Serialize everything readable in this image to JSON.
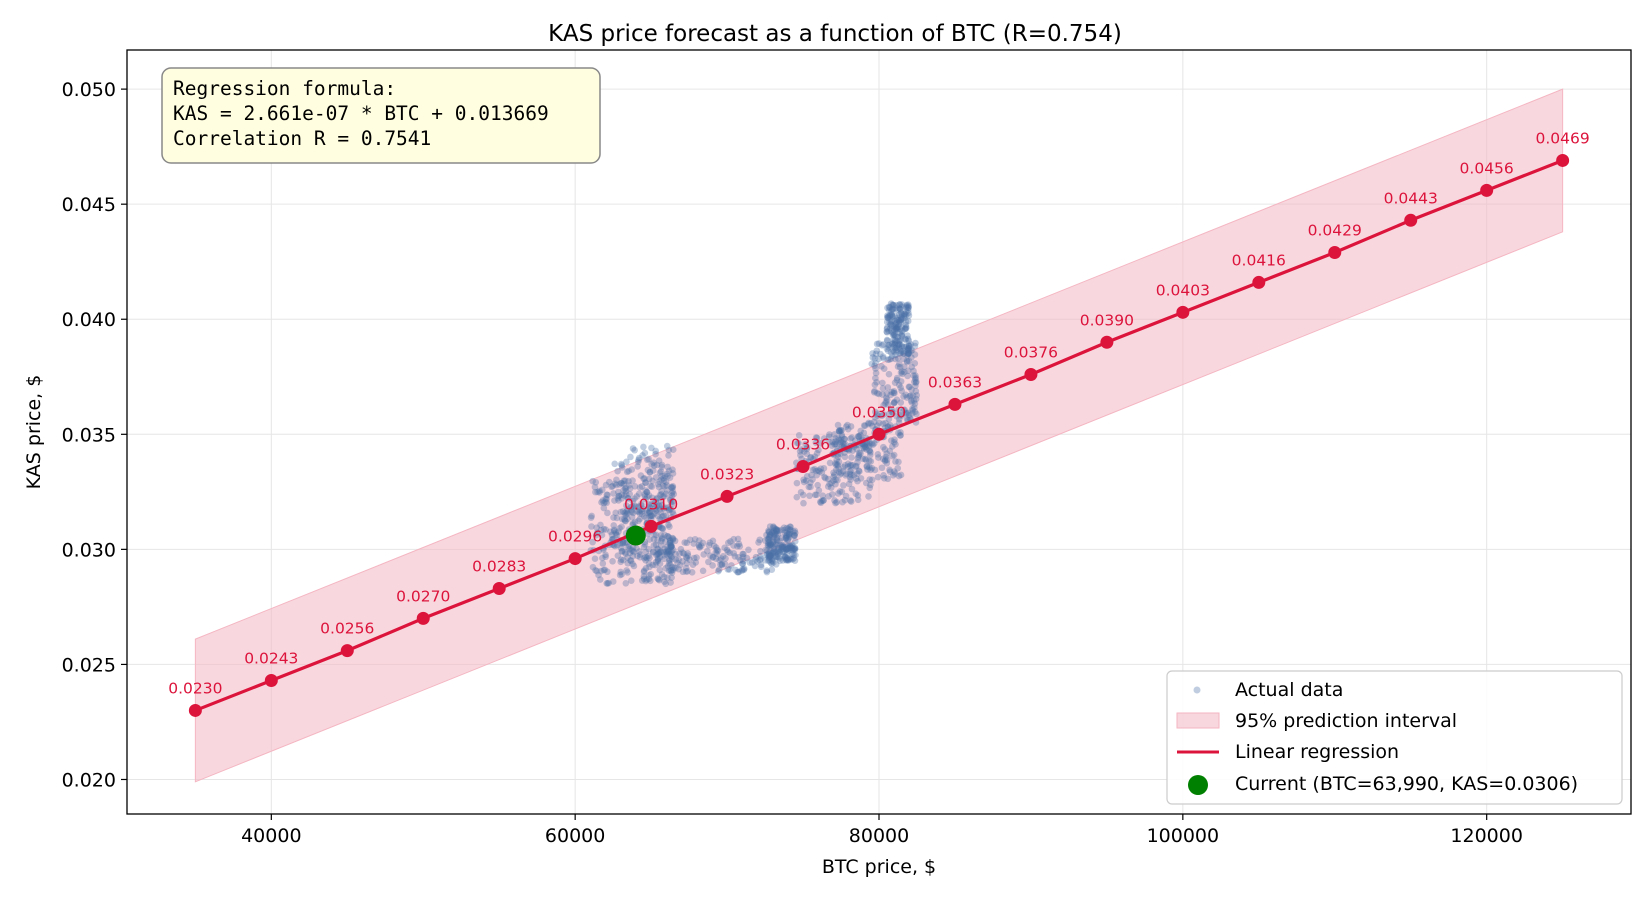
{
  "chart_data": {
    "type": "scatter",
    "title": "KAS price forecast as a function of BTC   (R=0.754)",
    "xlabel": "BTC price, $",
    "ylabel": "KAS price, $",
    "xlim": [
      30500,
      129500
    ],
    "ylim": [
      0.0185,
      0.0517
    ],
    "xticks": [
      "40000",
      "60000",
      "80000",
      "100000",
      "120000"
    ],
    "yticks": [
      "0.020",
      "0.025",
      "0.030",
      "0.035",
      "0.040",
      "0.045",
      "0.050"
    ],
    "grid": true,
    "annotation": {
      "lines": [
        "Regression formula:",
        "KAS = 2.661e-07 * BTC + 0.013669",
        "Correlation R = 0.7541"
      ]
    },
    "regression": {
      "name": "Linear regression",
      "color": "#dc143c",
      "x": [
        35000,
        40000,
        45000,
        50000,
        55000,
        60000,
        65000,
        70000,
        75000,
        80000,
        85000,
        90000,
        95000,
        100000,
        105000,
        110000,
        115000,
        120000,
        125000
      ],
      "y": [
        0.023,
        0.0243,
        0.0256,
        0.027,
        0.0283,
        0.0296,
        0.031,
        0.0323,
        0.0336,
        0.035,
        0.0363,
        0.0376,
        0.039,
        0.0403,
        0.0416,
        0.0429,
        0.0443,
        0.0456,
        0.0469
      ],
      "labels": [
        "0.0230",
        "0.0243",
        "0.0256",
        "0.0270",
        "0.0283",
        "0.0296",
        "0.0310",
        "0.0323",
        "0.0336",
        "0.0350",
        "0.0363",
        "0.0376",
        "0.0390",
        "0.0403",
        "0.0416",
        "0.0429",
        "0.0443",
        "0.0456",
        "0.0469"
      ]
    },
    "prediction_interval": {
      "name": "95% prediction interval",
      "color": "#f4b6c2",
      "x": [
        35000,
        125000
      ],
      "lower": [
        0.0199,
        0.0438
      ],
      "upper": [
        0.0261,
        0.05
      ]
    },
    "actual_data": {
      "name": "Actual data",
      "color": "#4a6fa5",
      "clusters": [
        {
          "x": [
            61000,
            64500
          ],
          "y": [
            0.0285,
            0.033
          ]
        },
        {
          "x": [
            62500,
            66500
          ],
          "y": [
            0.0295,
            0.0345
          ]
        },
        {
          "x": [
            64500,
            66500
          ],
          "y": [
            0.0285,
            0.0335
          ]
        },
        {
          "x": [
            66000,
            73500
          ],
          "y": [
            0.029,
            0.0305
          ]
        },
        {
          "x": [
            72500,
            74500
          ],
          "y": [
            0.0295,
            0.031
          ]
        },
        {
          "x": [
            74500,
            79500
          ],
          "y": [
            0.032,
            0.035
          ]
        },
        {
          "x": [
            77000,
            81500
          ],
          "y": [
            0.033,
            0.0355
          ]
        },
        {
          "x": [
            79500,
            82500
          ],
          "y": [
            0.0355,
            0.039
          ]
        },
        {
          "x": [
            80500,
            82000
          ],
          "y": [
            0.0385,
            0.0407
          ]
        }
      ]
    },
    "current": {
      "name": "Current (BTC=63,990, KAS=0.0306)",
      "color": "#008000",
      "x": 63990,
      "y": 0.0306
    },
    "legend": {
      "placement": "bottom-right",
      "items": [
        {
          "label": "Actual data",
          "kind": "dot-small"
        },
        {
          "label": "95% prediction interval",
          "kind": "patch"
        },
        {
          "label": "Linear regression",
          "kind": "line"
        },
        {
          "label": "Current (BTC=63,990, KAS=0.0306)",
          "kind": "dot-large"
        }
      ]
    }
  }
}
